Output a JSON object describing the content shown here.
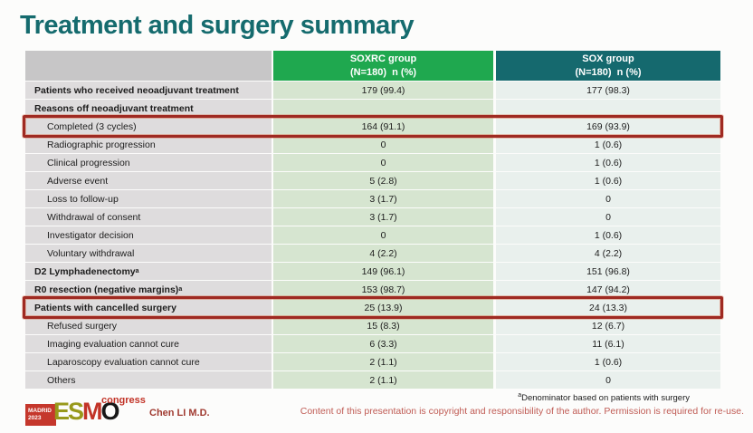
{
  "slide": {
    "title": "Treatment and surgery summary",
    "presenter": "Chen LI M.D.",
    "footnote_sup": "a",
    "footnote": "Denominator based on patients with surgery",
    "copyright": "Content of this presentation is copyright and responsibility of the author.  Permission is required for re-use."
  },
  "logo": {
    "city": "MADRID",
    "year": "2023",
    "letters": [
      "E",
      "S",
      "M",
      "O"
    ],
    "congress": "congress"
  },
  "colors": {
    "title_teal": "#156b6e",
    "header_green": "#1fa84f",
    "header_teal": "#15696e",
    "label_header_gray": "#c7c6c7",
    "label_cell_gray": "#dedcdd",
    "soxrc_cell_green": "#d6e5d0",
    "sox_cell_light": "#e9f0ed",
    "highlight_red": "#9f2a22",
    "logo_red": "#c5372c",
    "logo_olive": "#98991b",
    "copyright_red": "#c05c55"
  },
  "table": {
    "columns": [
      {
        "name": "",
        "sub": ""
      },
      {
        "name": "SOXRC group",
        "sub": "(N=180)  n (%)"
      },
      {
        "name": "SOX group",
        "sub": "(N=180)  n (%)"
      }
    ],
    "rows": [
      {
        "label": "Patients who received neoadjuvant treatment",
        "bold": true,
        "indent": false,
        "sup": "",
        "soxrc": "179 (99.4)",
        "sox": "177 (98.3)",
        "highlight": false
      },
      {
        "label": "Reasons off neoadjuvant treatment",
        "bold": true,
        "indent": false,
        "sup": "",
        "soxrc": "",
        "sox": "",
        "highlight": false
      },
      {
        "label": "Completed (3 cycles)",
        "bold": false,
        "indent": true,
        "sup": "",
        "soxrc": "164 (91.1)",
        "sox": "169 (93.9)",
        "highlight": true
      },
      {
        "label": "Radiographic progression",
        "bold": false,
        "indent": true,
        "sup": "",
        "soxrc": "0",
        "sox": "1 (0.6)",
        "highlight": false
      },
      {
        "label": "Clinical progression",
        "bold": false,
        "indent": true,
        "sup": "",
        "soxrc": "0",
        "sox": "1 (0.6)",
        "highlight": false
      },
      {
        "label": "Adverse event",
        "bold": false,
        "indent": true,
        "sup": "",
        "soxrc": "5 (2.8)",
        "sox": "1 (0.6)",
        "highlight": false
      },
      {
        "label": "Loss to follow-up",
        "bold": false,
        "indent": true,
        "sup": "",
        "soxrc": "3 (1.7)",
        "sox": "0",
        "highlight": false
      },
      {
        "label": "Withdrawal of consent",
        "bold": false,
        "indent": true,
        "sup": "",
        "soxrc": "3 (1.7)",
        "sox": "0",
        "highlight": false
      },
      {
        "label": "Investigator decision",
        "bold": false,
        "indent": true,
        "sup": "",
        "soxrc": "0",
        "sox": "1 (0.6)",
        "highlight": false
      },
      {
        "label": "Voluntary withdrawal",
        "bold": false,
        "indent": true,
        "sup": "",
        "soxrc": "4 (2.2)",
        "sox": "4 (2.2)",
        "highlight": false
      },
      {
        "label": "D2 Lymphadenectomy",
        "bold": true,
        "indent": false,
        "sup": "a",
        "soxrc": "149 (96.1)",
        "sox": "151 (96.8)",
        "highlight": false
      },
      {
        "label": "R0 resection (negative margins)",
        "bold": true,
        "indent": false,
        "sup": "a",
        "soxrc": "153 (98.7)",
        "sox": "147 (94.2)",
        "highlight": false
      },
      {
        "label": "Patients with cancelled surgery",
        "bold": true,
        "indent": false,
        "sup": "",
        "soxrc": "25 (13.9)",
        "sox": "24 (13.3)",
        "highlight": true
      },
      {
        "label": "Refused surgery",
        "bold": false,
        "indent": true,
        "sup": "",
        "soxrc": "15 (8.3)",
        "sox": "12 (6.7)",
        "highlight": false
      },
      {
        "label": "Imaging evaluation cannot cure",
        "bold": false,
        "indent": true,
        "sup": "",
        "soxrc": "6 (3.3)",
        "sox": "11 (6.1)",
        "highlight": false
      },
      {
        "label": "Laparoscopy evaluation cannot cure",
        "bold": false,
        "indent": true,
        "sup": "",
        "soxrc": "2 (1.1)",
        "sox": "1 (0.6)",
        "highlight": false
      },
      {
        "label": "Others",
        "bold": false,
        "indent": true,
        "sup": "",
        "soxrc": "2 (1.1)",
        "sox": "0",
        "highlight": false
      }
    ]
  }
}
